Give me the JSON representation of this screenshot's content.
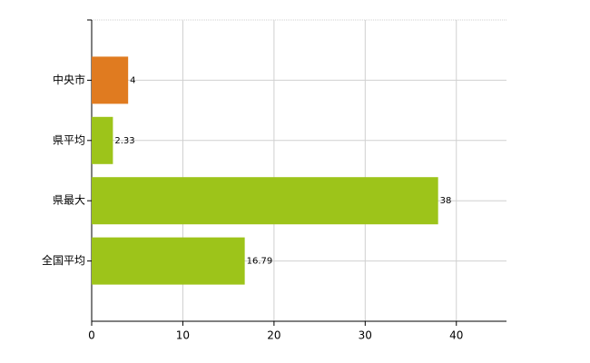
{
  "chart_data": {
    "type": "bar",
    "orientation": "horizontal",
    "categories": [
      "中央市",
      "県平均",
      "県最大",
      "全国平均"
    ],
    "values": [
      4,
      2.33,
      38,
      16.79
    ],
    "colors": [
      "#e07b20",
      "#9dc41a",
      "#9dc41a",
      "#9dc41a"
    ],
    "xlim": [
      0,
      45.5
    ],
    "xticks": [
      0,
      10,
      20,
      30,
      40
    ],
    "grid": true
  }
}
